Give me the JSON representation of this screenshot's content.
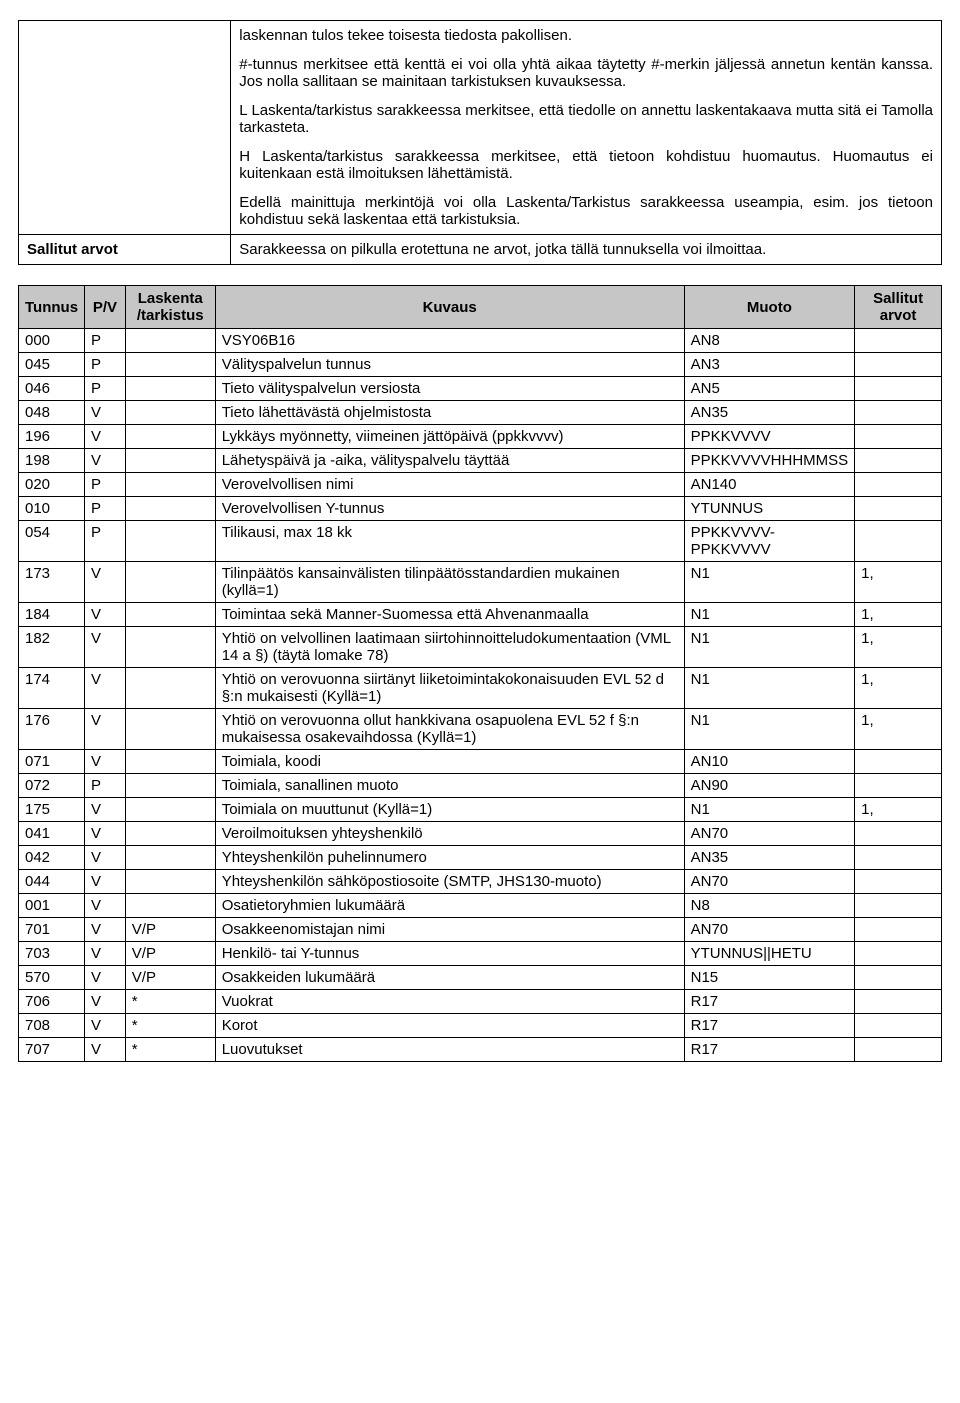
{
  "def_table": {
    "row1_left": "",
    "row1_paras": [
      "laskennan tulos tekee toisesta tiedosta pakollisen.",
      "#-tunnus merkitsee että kenttä ei voi olla yhtä aikaa täytetty #-merkin jäljessä annetun kentän kanssa. Jos nolla sallitaan se mainitaan tarkistuksen kuvauksessa.",
      "L Laskenta/tarkistus sarakkeessa merkitsee, että tiedolle on annettu laskentakaava mutta sitä ei Tamolla tarkasteta.",
      "H Laskenta/tarkistus sarakkeessa merkitsee, että tietoon kohdistuu huomautus. Huomautus ei kuitenkaan estä ilmoituksen lähettämistä.",
      "Edellä mainittuja merkintöjä voi olla Laskenta/Tarkistus sarakkeessa useampia, esim. jos tietoon kohdistuu sekä laskentaa että tarkistuksia."
    ],
    "row2_left": "Sallitut arvot",
    "row2_right": "Sarakkeessa on pilkulla erotettuna ne arvot, jotka tällä tunnuksella voi ilmoittaa."
  },
  "data_table": {
    "headers": {
      "tunnus": "Tunnus",
      "pv": "P/V",
      "lask": "Laskenta /tarkistus",
      "kuvaus": "Kuvaus",
      "muoto": "Muoto",
      "sallitut": "Sallitut arvot"
    },
    "rows": [
      {
        "tunnus": "000",
        "pv": "P",
        "lask": "",
        "kuvaus": "VSY06B16",
        "muoto": "AN8",
        "sallitut": ""
      },
      {
        "tunnus": "045",
        "pv": "P",
        "lask": "",
        "kuvaus": "Välityspalvelun tunnus",
        "muoto": "AN3",
        "sallitut": ""
      },
      {
        "tunnus": "046",
        "pv": "P",
        "lask": "",
        "kuvaus": "Tieto välityspalvelun versiosta",
        "muoto": "AN5",
        "sallitut": ""
      },
      {
        "tunnus": "048",
        "pv": "V",
        "lask": "",
        "kuvaus": "Tieto lähettävästä ohjelmistosta",
        "muoto": "AN35",
        "sallitut": ""
      },
      {
        "tunnus": "196",
        "pv": "V",
        "lask": "",
        "kuvaus": "Lykkäys myönnetty, viimeinen jättöpäivä (ppkkvvvv)",
        "muoto": "PPKKVVVV",
        "sallitut": ""
      },
      {
        "tunnus": "198",
        "pv": "V",
        "lask": "",
        "kuvaus": "Lähetyspäivä ja -aika, välityspalvelu täyttää",
        "muoto": "PPKKVVVVHHHMMSS",
        "sallitut": ""
      },
      {
        "tunnus": "020",
        "pv": "P",
        "lask": "",
        "kuvaus": "Verovelvollisen nimi",
        "muoto": "AN140",
        "sallitut": ""
      },
      {
        "tunnus": "010",
        "pv": "P",
        "lask": "",
        "kuvaus": "Verovelvollisen Y-tunnus",
        "muoto": "YTUNNUS",
        "sallitut": ""
      },
      {
        "tunnus": "054",
        "pv": "P",
        "lask": "",
        "kuvaus": "Tilikausi, max 18 kk",
        "muoto": "PPKKVVVV-PPKKVVVV",
        "sallitut": ""
      },
      {
        "tunnus": "173",
        "pv": "V",
        "lask": "",
        "kuvaus": "Tilinpäätös kansainvälisten tilinpäätösstandardien mukainen (kyllä=1)",
        "muoto": "N1",
        "sallitut": "1,"
      },
      {
        "tunnus": "184",
        "pv": "V",
        "lask": "",
        "kuvaus": "Toimintaa sekä Manner-Suomessa että Ahvenanmaalla",
        "muoto": "N1",
        "sallitut": "1,"
      },
      {
        "tunnus": "182",
        "pv": "V",
        "lask": "",
        "kuvaus": "Yhtiö on velvollinen laatimaan siirtohinnoitteludokumentaation (VML 14 a §) (täytä lomake 78)",
        "muoto": "N1",
        "sallitut": "1,"
      },
      {
        "tunnus": "174",
        "pv": "V",
        "lask": "",
        "kuvaus": "Yhtiö on verovuonna siirtänyt liiketoimintakokonaisuuden EVL 52 d §:n mukaisesti (Kyllä=1)",
        "muoto": "N1",
        "sallitut": "1,"
      },
      {
        "tunnus": "176",
        "pv": "V",
        "lask": "",
        "kuvaus": "Yhtiö on verovuonna ollut hankkivana osapuolena EVL 52 f §:n mukaisessa osakevaihdossa (Kyllä=1)",
        "muoto": "N1",
        "sallitut": "1,"
      },
      {
        "tunnus": "071",
        "pv": "V",
        "lask": "",
        "kuvaus": "Toimiala, koodi",
        "muoto": "AN10",
        "sallitut": ""
      },
      {
        "tunnus": "072",
        "pv": "P",
        "lask": "",
        "kuvaus": "Toimiala, sanallinen muoto",
        "muoto": "AN90",
        "sallitut": ""
      },
      {
        "tunnus": "175",
        "pv": "V",
        "lask": "",
        "kuvaus": "Toimiala on muuttunut (Kyllä=1)",
        "muoto": "N1",
        "sallitut": "1,"
      },
      {
        "tunnus": "041",
        "pv": "V",
        "lask": "",
        "kuvaus": "Veroilmoituksen yhteyshenkilö",
        "muoto": "AN70",
        "sallitut": ""
      },
      {
        "tunnus": "042",
        "pv": "V",
        "lask": "",
        "kuvaus": "Yhteyshenkilön puhelinnumero",
        "muoto": "AN35",
        "sallitut": ""
      },
      {
        "tunnus": "044",
        "pv": "V",
        "lask": "",
        "kuvaus": "Yhteyshenkilön sähköpostiosoite (SMTP, JHS130-muoto)",
        "muoto": "AN70",
        "sallitut": ""
      },
      {
        "tunnus": "001",
        "pv": "V",
        "lask": "",
        "kuvaus": "Osatietoryhmien lukumäärä",
        "muoto": "N8",
        "sallitut": ""
      },
      {
        "tunnus": "701",
        "pv": "V",
        "lask": "V/P",
        "kuvaus": "Osakkeenomistajan nimi",
        "muoto": "AN70",
        "sallitut": ""
      },
      {
        "tunnus": "703",
        "pv": "V",
        "lask": "V/P",
        "kuvaus": "Henkilö- tai Y-tunnus",
        "muoto": "YTUNNUS||HETU",
        "sallitut": ""
      },
      {
        "tunnus": "570",
        "pv": "V",
        "lask": "V/P",
        "kuvaus": "Osakkeiden lukumäärä",
        "muoto": "N15",
        "sallitut": ""
      },
      {
        "tunnus": "706",
        "pv": "V",
        "lask": "*",
        "kuvaus": "Vuokrat",
        "muoto": "R17",
        "sallitut": ""
      },
      {
        "tunnus": "708",
        "pv": "V",
        "lask": "*",
        "kuvaus": "Korot",
        "muoto": "R17",
        "sallitut": ""
      },
      {
        "tunnus": "707",
        "pv": "V",
        "lask": "*",
        "kuvaus": "Luovutukset",
        "muoto": "R17",
        "sallitut": ""
      }
    ]
  }
}
